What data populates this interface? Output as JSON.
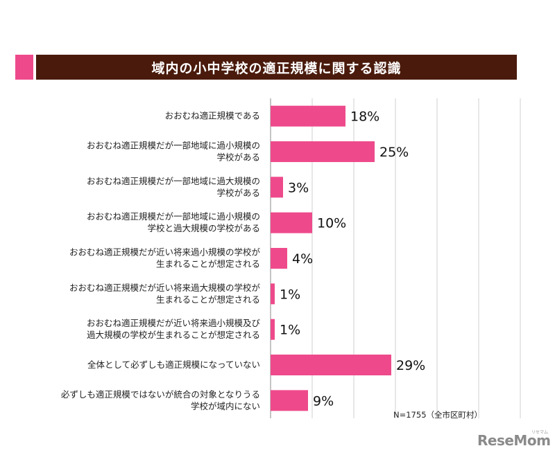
{
  "title": "域内の小中学校の適正規模に関する認識",
  "note": "N=1755（全市区町村）",
  "logo": {
    "text": "ReseMom",
    "sub": "リセマム"
  },
  "colors": {
    "bar": "#ee4a8b",
    "title_bg": "#4a1b0c",
    "title_accent": "#ee4a8b",
    "grid": "#cfcfcf"
  },
  "chart_data": {
    "type": "bar",
    "orientation": "horizontal",
    "title": "域内の小中学校の適正規模に関する認識",
    "xlim": [
      0,
      60
    ],
    "grid": true,
    "categories": [
      [
        "おおむね適正規模である"
      ],
      [
        "おおむね適正規模だが一部地域に過小規模の",
        "学校がある"
      ],
      [
        "おおむね適正規模だが一部地域に過大規模の",
        "学校がある"
      ],
      [
        "おおむね適正規模だが一部地域に過小規模の",
        "学校と過大規模の学校がある"
      ],
      [
        "おおむね適正規模だが近い将来過小規模の学校が",
        "生まれることが想定される"
      ],
      [
        "おおむね適正規模だが近い将来過大規模の学校が",
        "生まれることが想定される"
      ],
      [
        "おおむね適正規模だが近い将来過小規模及び",
        "過大規模の学校が生まれることが想定される"
      ],
      [
        "全体として必ずしも適正規模になっていない"
      ],
      [
        "必ずしも適正規模ではないが統合の対象となりうる",
        "学校が域内にない"
      ]
    ],
    "values": [
      18,
      25,
      3,
      10,
      4,
      1,
      1,
      29,
      9
    ],
    "value_labels": [
      "18%",
      "25%",
      "3%",
      "10%",
      "4%",
      "1%",
      "1%",
      "29%",
      "9%"
    ]
  }
}
